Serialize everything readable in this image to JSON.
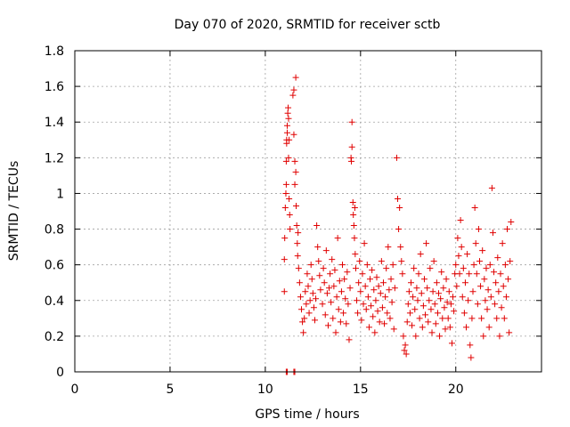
{
  "chart_data": {
    "type": "scatter",
    "title": "Day 070 of 2020, SRMTID for receiver sctb",
    "xlabel": "GPS time / hours",
    "ylabel": "SRMTID / TECUs",
    "xlim": [
      0,
      24.5
    ],
    "ylim": [
      0,
      1.8
    ],
    "xticks": [
      0,
      5,
      10,
      15,
      20
    ],
    "xtick_labels": [
      "0",
      "5",
      "10",
      "15",
      "20"
    ],
    "yticks": [
      0,
      0.2,
      0.4,
      0.6,
      0.8,
      1,
      1.2,
      1.4,
      1.6,
      1.8
    ],
    "ytick_labels": [
      "0",
      "0.2",
      "0.4",
      "0.6",
      "0.8",
      "1",
      "1.2",
      "1.4",
      "1.6",
      "1.8"
    ],
    "grid": true,
    "marker": "+",
    "series": [
      {
        "name": "SRMTID",
        "color": "#e00000",
        "points": [
          [
            11.1,
            0.0
          ],
          [
            11.15,
            0.0
          ],
          [
            11.5,
            0.0
          ],
          [
            11.55,
            0.0
          ],
          [
            11.0,
            0.45
          ],
          [
            11.0,
            0.63
          ],
          [
            11.02,
            0.75
          ],
          [
            11.05,
            0.92
          ],
          [
            11.08,
            1.0
          ],
          [
            11.1,
            1.05
          ],
          [
            11.1,
            1.18
          ],
          [
            11.12,
            1.28
          ],
          [
            11.12,
            1.3
          ],
          [
            11.15,
            1.34
          ],
          [
            11.15,
            1.38
          ],
          [
            11.18,
            1.45
          ],
          [
            11.2,
            1.48
          ],
          [
            11.22,
            1.2
          ],
          [
            11.22,
            1.42
          ],
          [
            11.25,
            1.3
          ],
          [
            11.25,
            0.97
          ],
          [
            11.28,
            0.88
          ],
          [
            11.3,
            0.8
          ],
          [
            11.45,
            1.55
          ],
          [
            11.5,
            1.58
          ],
          [
            11.5,
            1.33
          ],
          [
            11.55,
            1.18
          ],
          [
            11.55,
            1.05
          ],
          [
            11.6,
            1.65
          ],
          [
            11.6,
            1.12
          ],
          [
            11.62,
            0.93
          ],
          [
            11.65,
            0.82
          ],
          [
            11.68,
            0.72
          ],
          [
            11.7,
            0.65
          ],
          [
            11.72,
            0.78
          ],
          [
            11.75,
            0.58
          ],
          [
            11.8,
            0.5
          ],
          [
            11.85,
            0.42
          ],
          [
            11.9,
            0.35
          ],
          [
            11.95,
            0.28
          ],
          [
            12.0,
            0.22
          ],
          [
            12.05,
            0.3
          ],
          [
            12.1,
            0.45
          ],
          [
            12.15,
            0.38
          ],
          [
            12.2,
            0.55
          ],
          [
            12.25,
            0.48
          ],
          [
            12.3,
            0.33
          ],
          [
            12.35,
            0.4
          ],
          [
            12.4,
            0.6
          ],
          [
            12.45,
            0.52
          ],
          [
            12.5,
            0.44
          ],
          [
            12.55,
            0.36
          ],
          [
            12.6,
            0.29
          ],
          [
            12.65,
            0.41
          ],
          [
            12.7,
            0.82
          ],
          [
            12.75,
            0.7
          ],
          [
            12.8,
            0.62
          ],
          [
            12.85,
            0.54
          ],
          [
            12.9,
            0.46
          ],
          [
            13.0,
            0.38
          ],
          [
            13.05,
            0.58
          ],
          [
            13.1,
            0.5
          ],
          [
            13.15,
            0.32
          ],
          [
            13.2,
            0.68
          ],
          [
            13.25,
            0.44
          ],
          [
            13.3,
            0.26
          ],
          [
            13.35,
            0.47
          ],
          [
            13.4,
            0.55
          ],
          [
            13.45,
            0.39
          ],
          [
            13.5,
            0.63
          ],
          [
            13.55,
            0.3
          ],
          [
            13.6,
            0.48
          ],
          [
            13.65,
            0.57
          ],
          [
            13.7,
            0.22
          ],
          [
            13.75,
            0.42
          ],
          [
            13.8,
            0.75
          ],
          [
            13.85,
            0.35
          ],
          [
            13.9,
            0.51
          ],
          [
            13.95,
            0.28
          ],
          [
            14.0,
            0.45
          ],
          [
            14.05,
            0.6
          ],
          [
            14.1,
            0.33
          ],
          [
            14.15,
            0.52
          ],
          [
            14.2,
            0.41
          ],
          [
            14.25,
            0.27
          ],
          [
            14.3,
            0.56
          ],
          [
            14.35,
            0.38
          ],
          [
            14.4,
            0.18
          ],
          [
            14.45,
            0.47
          ],
          [
            14.5,
            1.2
          ],
          [
            14.52,
            1.18
          ],
          [
            14.55,
            1.4
          ],
          [
            14.55,
            1.26
          ],
          [
            14.6,
            0.95
          ],
          [
            14.62,
            0.88
          ],
          [
            14.65,
            0.82
          ],
          [
            14.68,
            0.75
          ],
          [
            14.7,
            0.92
          ],
          [
            14.72,
            0.66
          ],
          [
            14.75,
            0.58
          ],
          [
            14.8,
            0.4
          ],
          [
            14.85,
            0.33
          ],
          [
            14.9,
            0.5
          ],
          [
            14.95,
            0.62
          ],
          [
            15.0,
            0.45
          ],
          [
            15.05,
            0.29
          ],
          [
            15.1,
            0.55
          ],
          [
            15.15,
            0.38
          ],
          [
            15.2,
            0.72
          ],
          [
            15.25,
            0.48
          ],
          [
            15.3,
            0.35
          ],
          [
            15.35,
            0.6
          ],
          [
            15.4,
            0.42
          ],
          [
            15.45,
            0.25
          ],
          [
            15.5,
            0.52
          ],
          [
            15.55,
            0.37
          ],
          [
            15.6,
            0.57
          ],
          [
            15.65,
            0.31
          ],
          [
            15.7,
            0.46
          ],
          [
            15.75,
            0.22
          ],
          [
            15.8,
            0.4
          ],
          [
            15.85,
            0.53
          ],
          [
            15.9,
            0.34
          ],
          [
            15.95,
            0.48
          ],
          [
            16.0,
            0.28
          ],
          [
            16.05,
            0.44
          ],
          [
            16.1,
            0.62
          ],
          [
            16.15,
            0.36
          ],
          [
            16.2,
            0.5
          ],
          [
            16.25,
            0.27
          ],
          [
            16.3,
            0.42
          ],
          [
            16.35,
            0.58
          ],
          [
            16.4,
            0.33
          ],
          [
            16.45,
            0.7
          ],
          [
            16.5,
            0.46
          ],
          [
            16.55,
            0.3
          ],
          [
            16.6,
            0.52
          ],
          [
            16.65,
            0.39
          ],
          [
            16.7,
            0.6
          ],
          [
            16.75,
            0.24
          ],
          [
            16.8,
            0.47
          ],
          [
            16.9,
            1.2
          ],
          [
            16.95,
            0.97
          ],
          [
            17.0,
            0.8
          ],
          [
            17.05,
            0.92
          ],
          [
            17.1,
            0.7
          ],
          [
            17.15,
            0.62
          ],
          [
            17.2,
            0.55
          ],
          [
            17.25,
            0.2
          ],
          [
            17.3,
            0.12
          ],
          [
            17.35,
            0.15
          ],
          [
            17.4,
            0.1
          ],
          [
            17.45,
            0.28
          ],
          [
            17.5,
            0.38
          ],
          [
            17.55,
            0.45
          ],
          [
            17.6,
            0.33
          ],
          [
            17.65,
            0.5
          ],
          [
            17.7,
            0.26
          ],
          [
            17.75,
            0.42
          ],
          [
            17.8,
            0.58
          ],
          [
            17.85,
            0.35
          ],
          [
            17.9,
            0.2
          ],
          [
            17.95,
            0.47
          ],
          [
            18.0,
            0.4
          ],
          [
            18.05,
            0.55
          ],
          [
            18.1,
            0.3
          ],
          [
            18.15,
            0.66
          ],
          [
            18.2,
            0.44
          ],
          [
            18.25,
            0.25
          ],
          [
            18.3,
            0.37
          ],
          [
            18.35,
            0.52
          ],
          [
            18.4,
            0.32
          ],
          [
            18.45,
            0.72
          ],
          [
            18.5,
            0.47
          ],
          [
            18.55,
            0.28
          ],
          [
            18.6,
            0.4
          ],
          [
            18.65,
            0.58
          ],
          [
            18.7,
            0.35
          ],
          [
            18.75,
            0.22
          ],
          [
            18.8,
            0.45
          ],
          [
            18.85,
            0.62
          ],
          [
            18.9,
            0.38
          ],
          [
            18.95,
            0.27
          ],
          [
            19.0,
            0.5
          ],
          [
            19.05,
            0.33
          ],
          [
            19.1,
            0.44
          ],
          [
            19.15,
            0.2
          ],
          [
            19.2,
            0.41
          ],
          [
            19.25,
            0.56
          ],
          [
            19.3,
            0.3
          ],
          [
            19.35,
            0.47
          ],
          [
            19.4,
            0.36
          ],
          [
            19.45,
            0.24
          ],
          [
            19.5,
            0.52
          ],
          [
            19.55,
            0.39
          ],
          [
            19.6,
            0.3
          ],
          [
            19.65,
            0.45
          ],
          [
            19.7,
            0.25
          ],
          [
            19.75,
            0.38
          ],
          [
            19.8,
            0.16
          ],
          [
            19.85,
            0.42
          ],
          [
            19.9,
            0.34
          ],
          [
            19.95,
            0.55
          ],
          [
            20.0,
            0.6
          ],
          [
            20.05,
            0.48
          ],
          [
            20.1,
            0.75
          ],
          [
            20.15,
            0.65
          ],
          [
            20.2,
            0.55
          ],
          [
            20.25,
            0.85
          ],
          [
            20.3,
            0.7
          ],
          [
            20.35,
            0.42
          ],
          [
            20.4,
            0.58
          ],
          [
            20.45,
            0.33
          ],
          [
            20.5,
            0.5
          ],
          [
            20.55,
            0.25
          ],
          [
            20.6,
            0.66
          ],
          [
            20.65,
            0.4
          ],
          [
            20.7,
            0.55
          ],
          [
            20.75,
            0.15
          ],
          [
            20.8,
            0.08
          ],
          [
            20.85,
            0.3
          ],
          [
            20.9,
            0.45
          ],
          [
            20.95,
            0.6
          ],
          [
            21.0,
            0.92
          ],
          [
            21.05,
            0.72
          ],
          [
            21.1,
            0.55
          ],
          [
            21.15,
            0.38
          ],
          [
            21.2,
            0.8
          ],
          [
            21.25,
            0.62
          ],
          [
            21.3,
            0.48
          ],
          [
            21.35,
            0.3
          ],
          [
            21.4,
            0.68
          ],
          [
            21.45,
            0.2
          ],
          [
            21.5,
            0.52
          ],
          [
            21.55,
            0.4
          ],
          [
            21.6,
            0.58
          ],
          [
            21.65,
            0.35
          ],
          [
            21.7,
            0.46
          ],
          [
            21.75,
            0.25
          ],
          [
            21.8,
            0.6
          ],
          [
            21.85,
            0.42
          ],
          [
            21.9,
            1.03
          ],
          [
            21.95,
            0.78
          ],
          [
            22.0,
            0.56
          ],
          [
            22.05,
            0.38
          ],
          [
            22.1,
            0.5
          ],
          [
            22.15,
            0.3
          ],
          [
            22.2,
            0.64
          ],
          [
            22.25,
            0.45
          ],
          [
            22.3,
            0.2
          ],
          [
            22.35,
            0.55
          ],
          [
            22.4,
            0.36
          ],
          [
            22.45,
            0.72
          ],
          [
            22.5,
            0.48
          ],
          [
            22.55,
            0.3
          ],
          [
            22.6,
            0.6
          ],
          [
            22.65,
            0.42
          ],
          [
            22.7,
            0.8
          ],
          [
            22.75,
            0.52
          ],
          [
            22.8,
            0.22
          ],
          [
            22.85,
            0.62
          ],
          [
            22.9,
            0.84
          ]
        ]
      }
    ]
  }
}
